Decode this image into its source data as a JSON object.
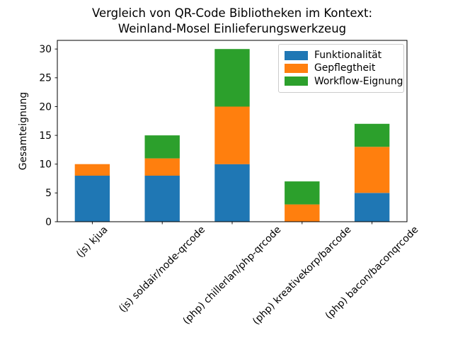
{
  "title": {
    "line1": "Vergleich von QR-Code Bibliotheken im Kontext:",
    "line2": "Weinland-Mosel Einlieferungswerkzeug"
  },
  "chart_data": {
    "type": "bar",
    "stacked": true,
    "title": "Vergleich von QR-Code Bibliotheken im Kontext:\nWeinland-Mosel Einlieferungswerkzeug",
    "categories": [
      "(js) kjua",
      "(js) soldair/node-qrcode",
      "(php) chillerlan/php-qrcode",
      "(php) kreativekorp/barcode",
      "(php) bacon/baconqrcode"
    ],
    "series": [
      {
        "name": "Funktionalität",
        "color": "#1f77b4",
        "values": [
          8,
          8,
          10,
          0,
          5
        ]
      },
      {
        "name": "Gepflegtheit",
        "color": "#ff7f0e",
        "values": [
          2,
          3,
          10,
          3,
          8
        ]
      },
      {
        "name": "Workflow-Eignung",
        "color": "#2ca02c",
        "values": [
          0,
          4,
          10,
          4,
          4
        ]
      }
    ],
    "totals": [
      10,
      15,
      30,
      7,
      17
    ],
    "xlabel": "",
    "ylabel": "Gesamteignung",
    "yticks": [
      0,
      5,
      10,
      15,
      20,
      25,
      30
    ],
    "ylim": [
      0,
      31.5
    ],
    "bar_width_fraction": 0.5,
    "x_tick_rotation": 45,
    "grid": false,
    "legend_position": "upper right",
    "text_color": "#000000",
    "background_color": "#ffffff"
  }
}
